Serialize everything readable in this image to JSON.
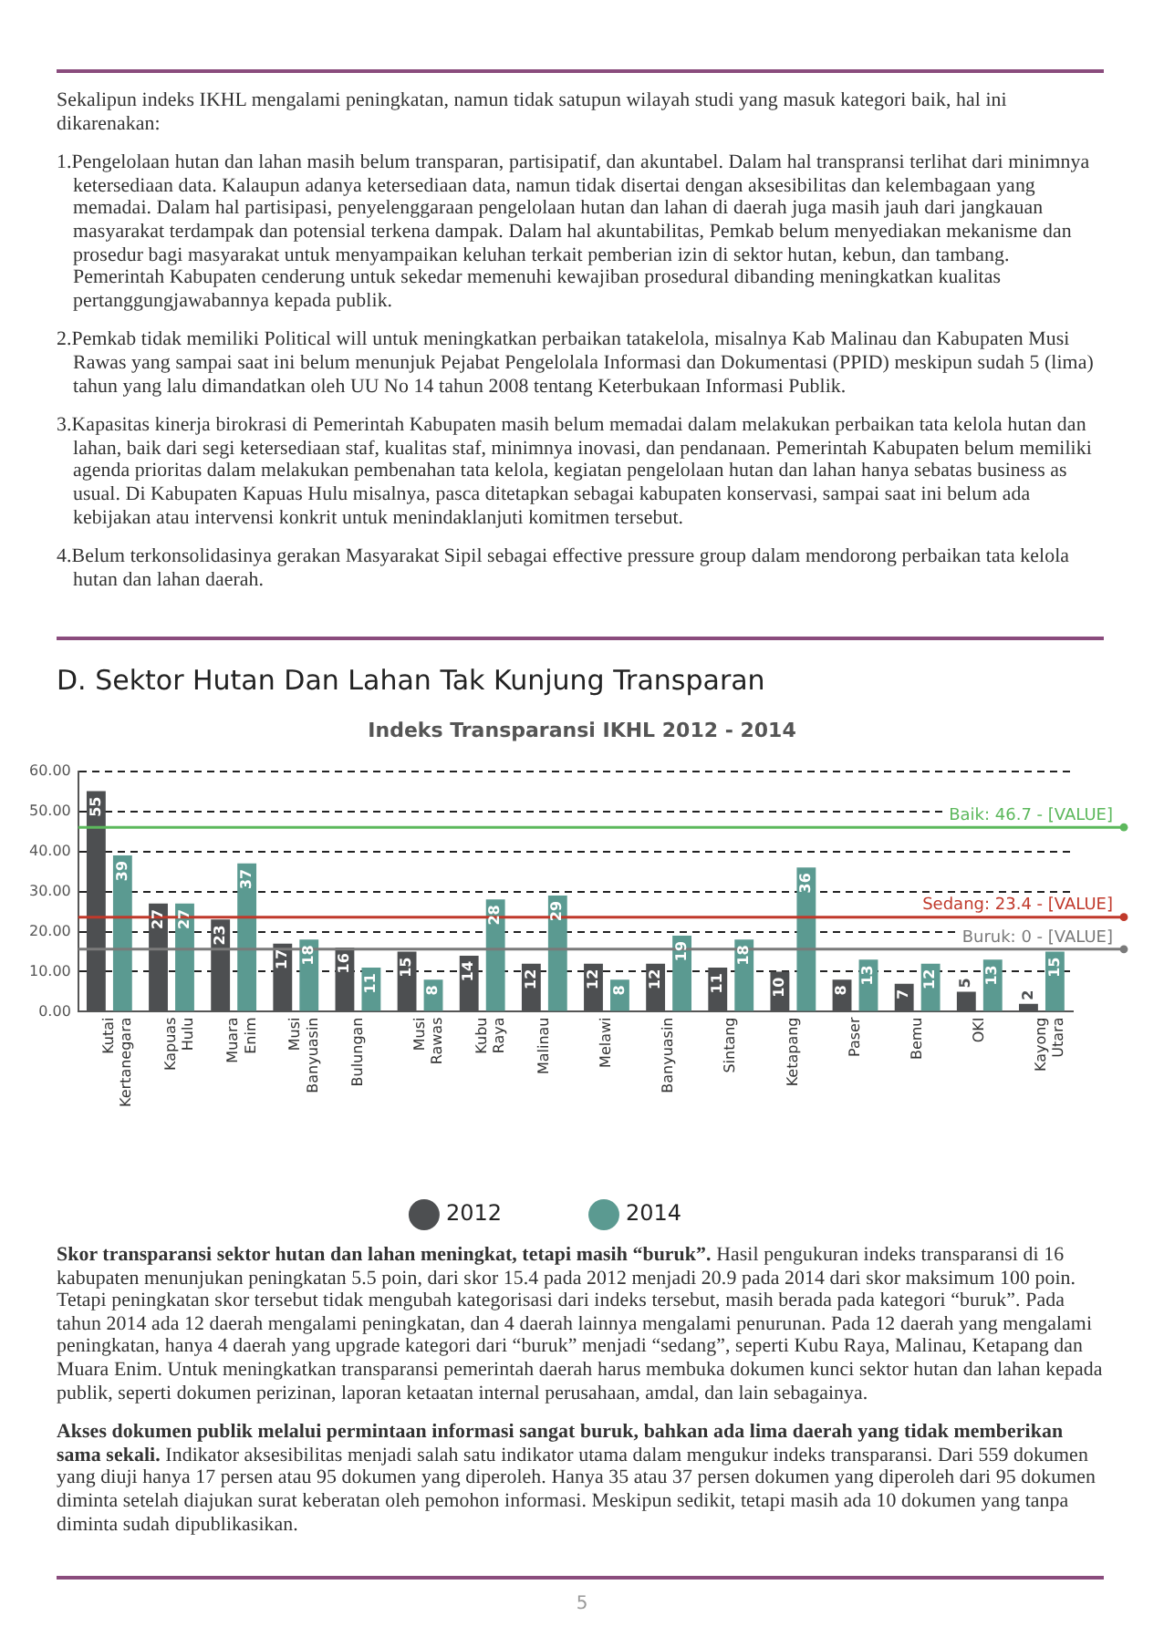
{
  "chart_data": {
    "type": "bar",
    "title": "Indeks Transparansi IKHL 2012 - 2014",
    "categories": [
      "Kutai Kertanegara",
      "Kapuas Hulu",
      "Muara Enim",
      "Musi Banyuasin",
      "Bulungan",
      "Musi Rawas",
      "Kubu Raya",
      "Malinau",
      "Melawi",
      "Banyuasin",
      "Sintang",
      "Ketapang",
      "Paser",
      "Bemu",
      "OKI",
      "Kayong Utara"
    ],
    "series": [
      {
        "name": "2012",
        "color": "#4d4f51",
        "values": [
          55,
          27,
          23,
          17,
          16,
          15,
          14,
          12,
          12,
          12,
          11,
          10,
          8,
          7,
          5,
          2
        ]
      },
      {
        "name": "2014",
        "color": "#5b9a91",
        "values": [
          39,
          27,
          37,
          18,
          11,
          8,
          28,
          29,
          8,
          19,
          18,
          36,
          13,
          12,
          13,
          15
        ]
      }
    ],
    "ylim": [
      0,
      60
    ],
    "yticks": [
      {
        "value": 0,
        "label": "0.00"
      },
      {
        "value": 10,
        "label": "10.00"
      },
      {
        "value": 20,
        "label": "20.00"
      },
      {
        "value": 30,
        "label": "30.00"
      },
      {
        "value": 40,
        "label": "40.00"
      },
      {
        "value": 50,
        "label": "50.00"
      },
      {
        "value": 60,
        "label": "60.00"
      }
    ],
    "grid": "y",
    "legend": "bottom",
    "data_labels": true,
    "ref_lines": [
      {
        "axis": "y",
        "value": 46,
        "color": "#5cb85c"
      },
      {
        "axis": "y",
        "value": 23.6,
        "color": "#c0392b"
      },
      {
        "axis": "y",
        "value": 15.6,
        "color": "#7a7a7a"
      }
    ],
    "annotations": [
      {
        "text": "Baik: 46.7 - [VALUE]",
        "y": 46
      },
      {
        "text": "Sedang: 23.4 - [VALUE]",
        "y": 23.6
      },
      {
        "text": "Buruk: 0 - [VALUE]",
        "y": 15.6
      },
      "Sekalipun indeks IKHL mengalami peningkatan, namun tidak satupun wilayah studi yang masuk kategori baik, hal ini dikarenakan:",
      "1.Pengelolaan hutan dan lahan masih belum transparan, partisipatif, dan akuntabel. Dalam hal transpransi terlihat dari minimnya ketersediaan data. Kalaupun adanya ketersediaan data, namun tidak disertai dengan aksesibilitas dan kelembagaan yang memadai. Dalam hal partisipasi, penyelenggaraan pengelolaan hutan dan lahan di daerah juga masih jauh dari jangkauan masyarakat terdampak dan potensial terkena dampak. Dalam hal akuntabilitas, Pemkab belum menyediakan mekanisme dan prosedur bagi masyarakat untuk menyampaikan keluhan terkait pemberian izin di sektor hutan, kebun, dan tambang. Pemerintah Kabupaten cenderung untuk sekedar memenuhi kewajiban prosedural dibanding meningkatkan kualitas pertanggungjawabannya kepada publik.",
      "2.Pemkab tidak memiliki Political will untuk meningkatkan perbaikan tatakelola, misalnya Kab Malinau dan Kabupaten Musi Rawas yang sampai saat ini belum menunjuk Pejabat Pengelolala Informasi dan Dokumentasi (PPID) meskipun sudah 5 (lima) tahun yang lalu dimandatkan oleh UU No 14 tahun 2008 tentang Keterbukaan Informasi Publik.",
      "3.Kapasitas kinerja birokrasi di Pemerintah Kabupaten masih belum memadai dalam melakukan perbaikan tata kelola hutan dan lahan, baik dari segi ketersediaan staf, kualitas staf, minimnya inovasi, dan pendanaan. Pemerintah Kabupaten belum memiliki agenda prioritas dalam melakukan pembenahan tata kelola, kegiatan pengelolaan hutan dan lahan hanya sebatas business as usual. Di Kabupaten Kapuas Hulu misalnya, pasca ditetapkan sebagai kabupaten konservasi, sampai saat ini belum ada kebijakan atau intervensi konkrit untuk menindaklanjuti komitmen tersebut.",
      "4.Belum terkonsolidasinya gerakan Masyarakat Sipil sebagai effective pressure group dalam mendorong perbaikan tata kelola hutan dan lahan daerah.",
      "D. Sektor Hutan Dan Lahan Tak Kunjung Transparan",
      "Skor transparansi sektor hutan dan lahan meningkat, tetapi masih “buruk”.",
      "Hasil pengukuran indeks transparansi di 16 kabupaten menunjukan peningkatan 5.5 poin, dari skor 15.4 pada 2012 menjadi 20.9 pada 2014 dari skor maksimum 100 poin. Tetapi peningkatan skor tersebut tidak mengubah kategorisasi dari indeks tersebut, masih berada pada kategori “buruk”. Pada tahun 2014 ada 12 daerah mengalami peningkatan, dan 4 daerah lainnya mengalami penurunan. Pada 12 daerah yang mengalami peningkatan, hanya 4 daerah yang upgrade kategori dari “buruk” menjadi “sedang”, seperti Kubu Raya, Malinau, Ketapang dan Muara Enim. Untuk meningkatkan transparansi pemerintah daerah harus membuka dokumen kunci sektor hutan dan lahan kepada publik, seperti dokumen perizinan, laporan ketaatan internal perusahaan, amdal, dan lain sebagainya.",
      "Akses dokumen publik melalui permintaan informasi sangat buruk, bahkan ada lima daerah yang tidak memberikan sama sekali.",
      "Indikator aksesibilitas menjadi salah satu indikator utama dalam mengukur indeks transparansi. Dari 559 dokumen yang diuji hanya 17 persen atau 95 dokumen yang diperoleh. Hanya 35 atau 37 persen dokumen yang diperoleh dari 95 dokumen diminta setelah diajukan surat keberatan oleh pemohon informasi. Meskipun sedikit, tetapi masih ada 10 dokumen yang tanpa diminta sudah dipublikasikan.",
      "5"
    ]
  }
}
